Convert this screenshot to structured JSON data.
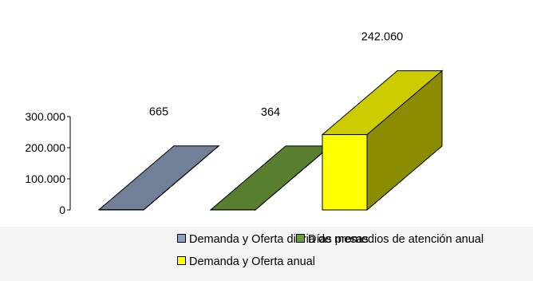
{
  "chart_data": {
    "type": "bar",
    "three_d": true,
    "categories": [
      "Demanda y Oferta diaria de mesas",
      "Días promedios de atención anual",
      "Demanda y Oferta anual"
    ],
    "series": [
      {
        "name": "Demanda y Oferta diaria de mesas",
        "value": 665,
        "label": "665",
        "color": "#8f9fbf"
      },
      {
        "name": "Días promedios de atención anual",
        "value": 364,
        "label": "364",
        "color": "#6e9e3c"
      },
      {
        "name": "Demanda y Oferta anual",
        "value": 242060,
        "label": "242.060",
        "color": "#ffff00"
      }
    ],
    "yticks": [
      "0",
      "100.000",
      "200.000",
      "300.000"
    ],
    "ylim": [
      0,
      300000
    ],
    "legend_position": "bottom"
  }
}
